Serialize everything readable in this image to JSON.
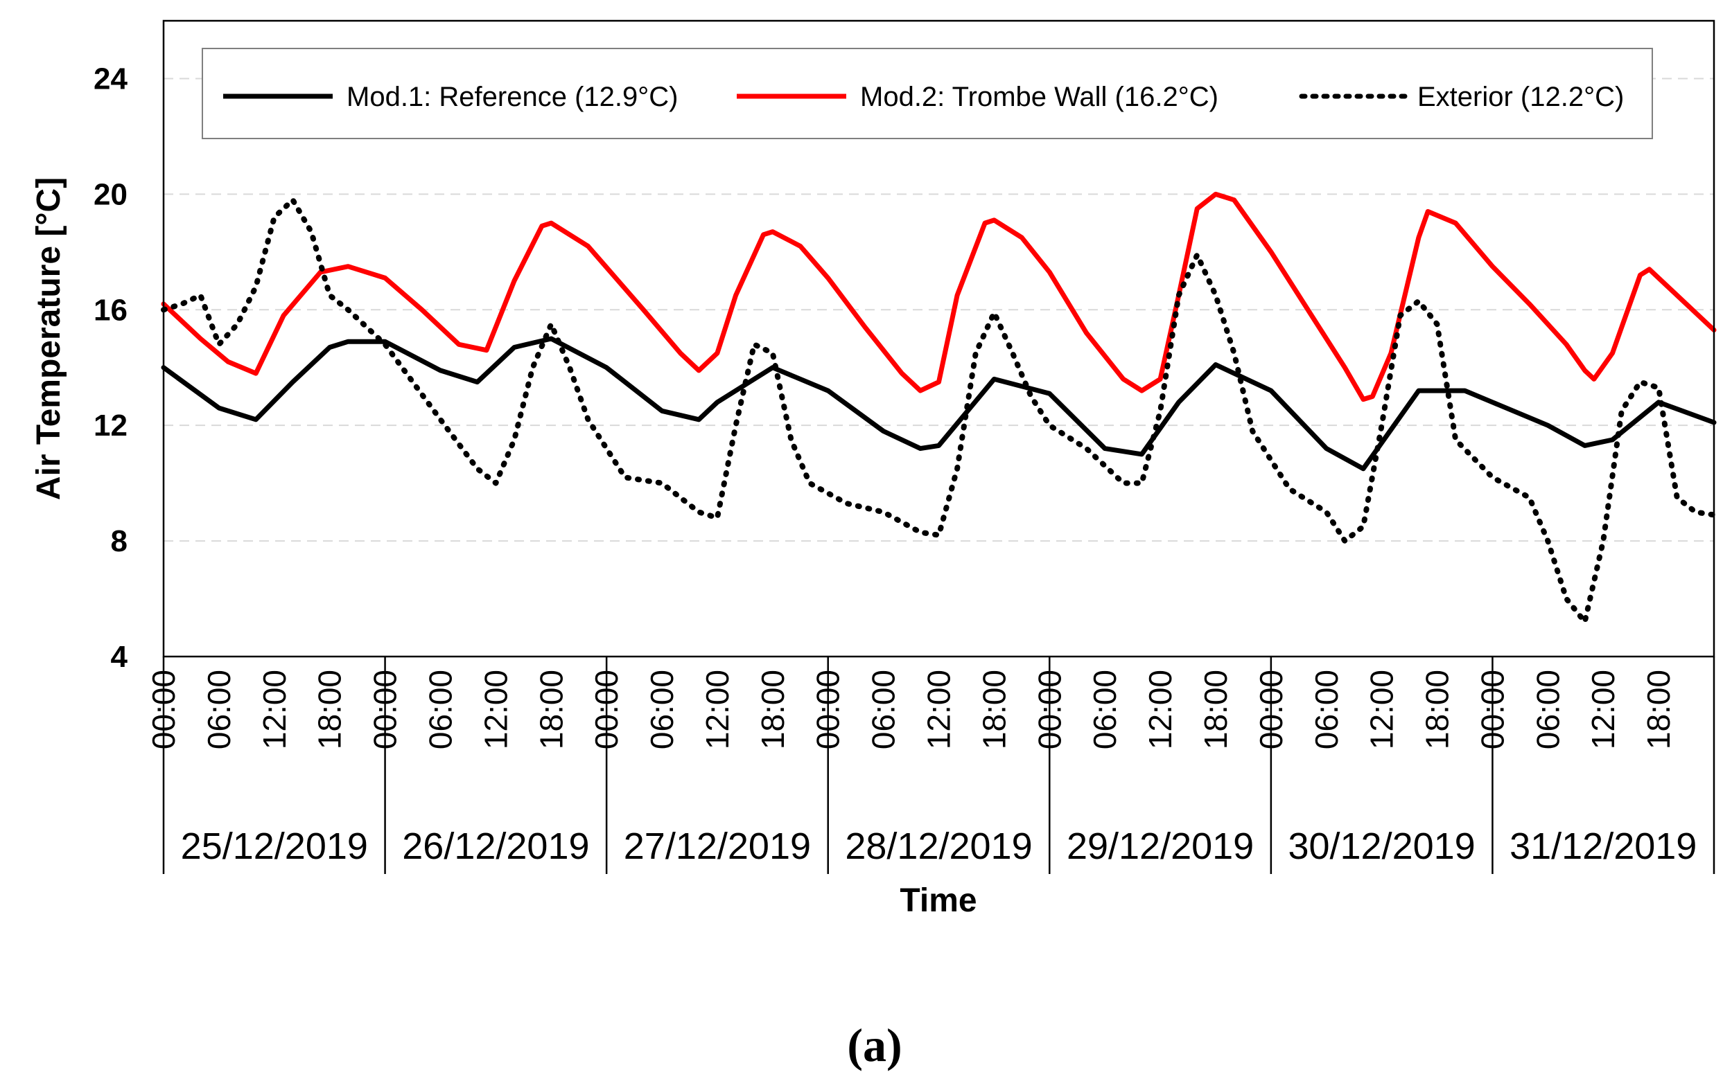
{
  "chart_data": {
    "type": "line",
    "title": "",
    "xlabel": "Time",
    "ylabel": "Air Temperature [°C]",
    "ylim": [
      4,
      26
    ],
    "yticks": [
      4,
      8,
      12,
      16,
      20,
      24
    ],
    "grid": "horizontal dashed",
    "legend_position": "top",
    "x_unit": "hours since 25/12/2019 00:00",
    "xlim": [
      0,
      168
    ],
    "hour_tick_labels": [
      "00:00",
      "06:00",
      "12:00",
      "18:00"
    ],
    "dates": [
      "25/12/2019",
      "26/12/2019",
      "27/12/2019",
      "28/12/2019",
      "29/12/2019",
      "30/12/2019",
      "31/12/2019"
    ],
    "caption": "(a)",
    "series": [
      {
        "name": "Mod.1: Reference (12.9°C)",
        "color": "#000000",
        "style": "solid",
        "x": [
          0,
          6,
          10,
          14,
          18,
          20,
          24,
          30,
          34,
          38,
          42,
          48,
          54,
          58,
          60,
          66,
          72,
          78,
          82,
          84,
          90,
          96,
          102,
          106,
          110,
          114,
          120,
          126,
          130,
          136,
          141,
          144,
          150,
          154,
          157,
          162,
          168
        ],
        "values": [
          14.0,
          12.6,
          12.2,
          13.5,
          14.7,
          14.9,
          14.9,
          13.9,
          13.5,
          14.7,
          15.0,
          14.0,
          12.5,
          12.2,
          12.8,
          14.0,
          13.2,
          11.8,
          11.2,
          11.3,
          13.6,
          13.1,
          11.2,
          11.0,
          12.8,
          14.1,
          13.2,
          11.2,
          10.5,
          13.2,
          13.2,
          12.8,
          12.0,
          11.3,
          11.5,
          12.8,
          12.1
        ]
      },
      {
        "name": "Mod.2: Trombe Wall (16.2°C)",
        "color": "#ff0000",
        "style": "solid",
        "x": [
          0,
          4,
          7,
          10,
          13,
          17,
          20,
          24,
          28,
          32,
          35,
          38,
          41,
          42,
          46,
          52,
          56,
          58,
          60,
          62,
          65,
          66,
          69,
          72,
          76,
          80,
          82,
          84,
          86,
          89,
          90,
          93,
          96,
          100,
          104,
          106,
          108,
          110,
          112,
          114,
          116,
          120,
          124,
          128,
          130,
          131,
          133,
          136,
          137,
          140,
          144,
          148,
          152,
          154,
          155,
          157,
          160,
          161,
          164,
          168
        ],
        "values": [
          16.2,
          15.0,
          14.2,
          13.8,
          15.8,
          17.3,
          17.5,
          17.1,
          16.0,
          14.8,
          14.6,
          17.0,
          18.9,
          19.0,
          18.2,
          16.0,
          14.5,
          13.9,
          14.5,
          16.5,
          18.6,
          18.7,
          18.2,
          17.1,
          15.4,
          13.8,
          13.2,
          13.5,
          16.5,
          19.0,
          19.1,
          18.5,
          17.3,
          15.2,
          13.6,
          13.2,
          13.6,
          16.5,
          19.5,
          20.0,
          19.8,
          18.0,
          16.0,
          14.0,
          12.9,
          13.0,
          14.5,
          18.5,
          19.4,
          19.0,
          17.5,
          16.2,
          14.8,
          13.9,
          13.6,
          14.5,
          17.2,
          17.4,
          16.5,
          15.3
        ]
      },
      {
        "name": "Exterior (12.2°C)",
        "color": "#000000",
        "style": "dotted",
        "x": [
          0,
          2,
          4,
          6,
          8,
          10,
          12,
          14,
          16,
          18,
          20,
          24,
          30,
          34,
          36,
          38,
          40,
          42,
          44,
          46,
          50,
          54,
          58,
          60,
          62,
          64,
          66,
          68,
          70,
          74,
          78,
          82,
          84,
          86,
          88,
          90,
          92,
          94,
          96,
          100,
          104,
          106,
          108,
          110,
          112,
          114,
          116,
          118,
          122,
          126,
          128,
          130,
          132,
          134,
          136,
          138,
          140,
          144,
          148,
          150,
          152,
          154,
          156,
          158,
          160,
          162,
          164,
          166,
          168
        ],
        "values": [
          16.0,
          16.2,
          16.5,
          14.8,
          15.5,
          16.8,
          19.2,
          19.8,
          18.7,
          16.5,
          16.0,
          14.8,
          12.2,
          10.5,
          10.0,
          11.5,
          14.0,
          15.5,
          14.0,
          12.2,
          10.2,
          10.0,
          9.0,
          8.8,
          12.0,
          14.8,
          14.5,
          11.5,
          10.0,
          9.3,
          9.0,
          8.3,
          8.2,
          10.5,
          14.5,
          15.9,
          14.5,
          13.0,
          12.0,
          11.2,
          10.0,
          10.0,
          12.5,
          16.5,
          17.9,
          16.5,
          14.5,
          11.8,
          9.8,
          9.0,
          8.0,
          8.5,
          12.0,
          15.8,
          16.3,
          15.5,
          11.5,
          10.2,
          9.5,
          8.0,
          6.0,
          5.2,
          8.0,
          12.5,
          13.5,
          13.3,
          9.5,
          9.0,
          8.9
        ]
      }
    ]
  }
}
